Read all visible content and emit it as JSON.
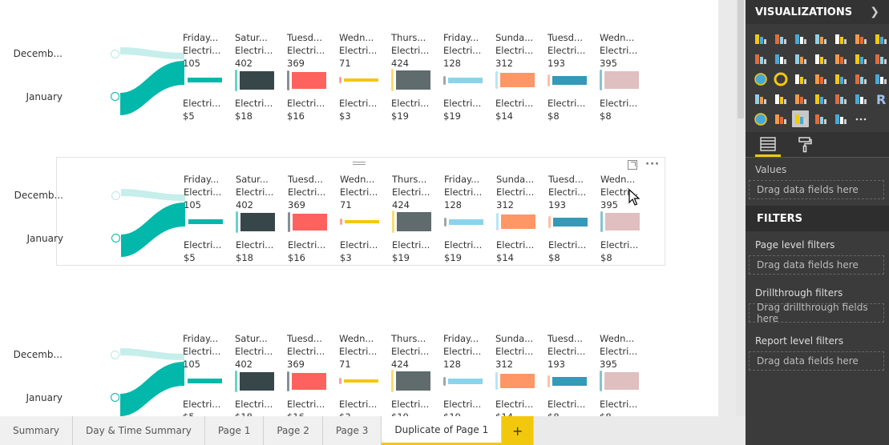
{
  "visuals": [
    {
      "legend": {
        "top": "Decemb...",
        "bottom": "January"
      },
      "columns": [
        {
          "name": "Friday...",
          "category": "Electri...",
          "value": "105",
          "bottom_category": "Electri...",
          "amount": "$5",
          "color": "#01B8AA"
        },
        {
          "name": "Satur...",
          "category": "Electri...",
          "value": "402",
          "bottom_category": "Electri...",
          "amount": "$18",
          "color": "#374649"
        },
        {
          "name": "Tuesd...",
          "category": "Electri...",
          "value": "369",
          "bottom_category": "Electri...",
          "amount": "$16",
          "color": "#FD625E"
        },
        {
          "name": "Wedn...",
          "category": "Electri...",
          "value": "71",
          "bottom_category": "Electri...",
          "amount": "$3",
          "color": "#F2C80F"
        },
        {
          "name": "Thurs...",
          "category": "Electri...",
          "value": "424",
          "bottom_category": "Electri...",
          "amount": "$19",
          "color": "#5F6B6D"
        },
        {
          "name": "Friday...",
          "category": "Electri...",
          "value": "128",
          "bottom_category": "Electri...",
          "amount": "$19",
          "color": "#8AD4EB"
        },
        {
          "name": "Sunda...",
          "category": "Electri...",
          "value": "312",
          "bottom_category": "Electri...",
          "amount": "$14",
          "color": "#FE9666"
        },
        {
          "name": "Tuesd...",
          "category": "Electri...",
          "value": "193",
          "bottom_category": "Electri...",
          "amount": "$8",
          "color": "#3599B8"
        },
        {
          "name": "Wedn...",
          "category": "Electri...",
          "value": "395",
          "bottom_category": "Electri...",
          "amount": "$8",
          "color": "#DFBFBF"
        }
      ]
    }
  ],
  "tabs": [
    {
      "label": "Summary"
    },
    {
      "label": "Day & Time Summary"
    },
    {
      "label": "Page 1"
    },
    {
      "label": "Page 2"
    },
    {
      "label": "Page 3"
    },
    {
      "label": "Duplicate of Page 1",
      "active": true
    }
  ],
  "add_tab_icon": "+",
  "pane": {
    "visualizations_title": "VISUALIZATIONS",
    "values_label": "Values",
    "values_drop": "Drag data fields here",
    "filters_title": "FILTERS",
    "page_filters_label": "Page level filters",
    "page_filters_drop": "Drag data fields here",
    "drill_label": "Drillthrough filters",
    "drill_drop": "Drag drillthrough fields here",
    "report_filters_label": "Report level filters",
    "report_filters_drop": "Drag data fields here"
  },
  "icons": {
    "expand": "chevron-right-icon",
    "fields_tab": "fields-icon",
    "format_tab": "paint-roller-icon",
    "focus": "focus-mode-icon",
    "more": "more-options-icon"
  }
}
